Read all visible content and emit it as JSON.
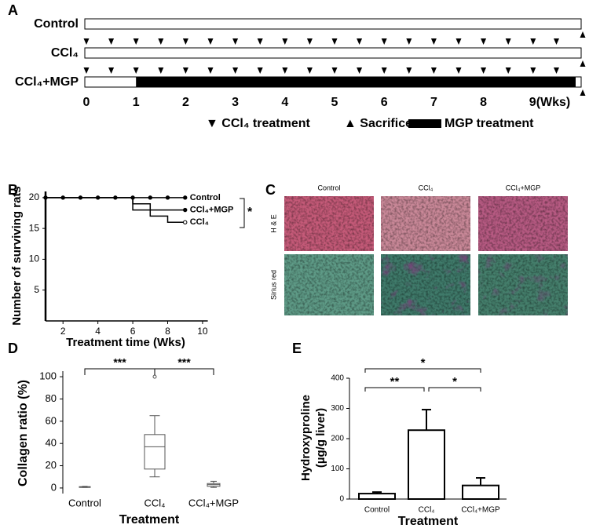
{
  "panel_labels": [
    "A",
    "B",
    "C",
    "D",
    "E"
  ],
  "timeline": {
    "rows": [
      "Control",
      "CCl₄",
      "CCl₄+MGP"
    ],
    "week_labels": [
      "0",
      "1",
      "2",
      "3",
      "4",
      "5",
      "6",
      "7",
      "8",
      "9(Wks)"
    ],
    "legend": [
      "▼ CCl₄ treatment",
      "▲ Sacrifice",
      "MGP treatment"
    ]
  },
  "histology": {
    "columns": [
      "Control",
      "CCl₄",
      "CCl₄+MGP"
    ],
    "rows": [
      "H & E",
      "Sirius red"
    ]
  },
  "chart_data": [
    {
      "type": "line",
      "ylabel": "Number of surviving rats",
      "xlabel": "Treatment time (Wks)",
      "xlim": [
        1,
        10.3
      ],
      "ylim": [
        0,
        21
      ],
      "xticks": [
        2,
        4,
        6,
        8,
        10
      ],
      "yticks": [
        5,
        10,
        15,
        20
      ],
      "series": [
        {
          "name": "Control",
          "color": "#000000",
          "x": [
            1,
            2,
            3,
            4,
            5,
            6,
            7,
            8,
            9
          ],
          "values": [
            20,
            20,
            20,
            20,
            20,
            20,
            20,
            20,
            20
          ]
        },
        {
          "name": "CCl₄+MGP",
          "color": "#000000",
          "x": [
            1,
            6,
            6,
            7,
            7,
            9
          ],
          "values": [
            20,
            20,
            19,
            19,
            18,
            18
          ]
        },
        {
          "name": "CCl₄",
          "color": "#000000",
          "x": [
            1,
            6,
            6,
            7,
            7,
            8,
            8,
            9
          ],
          "values": [
            20,
            20,
            18,
            18,
            17,
            17,
            16,
            16
          ]
        }
      ],
      "annotation": "*"
    },
    {
      "type": "box",
      "ylabel": "Collagen ratio (%)",
      "xlabel": "Treatment",
      "categories": [
        "Control",
        "CCl₄",
        "CCl₄+MGP"
      ],
      "ylim": [
        -5,
        105
      ],
      "yticks": [
        0,
        20,
        40,
        60,
        80,
        100
      ],
      "boxes": [
        {
          "min": 0.5,
          "q1": 0.8,
          "median": 1,
          "q3": 1.2,
          "max": 1.5
        },
        {
          "min": 10,
          "q1": 17,
          "median": 37,
          "q3": 48,
          "max": 65,
          "outliers": [
            100
          ]
        },
        {
          "min": 0.5,
          "q1": 1.5,
          "median": 3,
          "q3": 4,
          "max": 6
        }
      ],
      "significance": [
        "***",
        "***"
      ]
    },
    {
      "type": "bar",
      "ylabel": [
        "Hydroxyproline",
        "(µg/g liver)"
      ],
      "xlabel": "Treatment",
      "categories": [
        "Control",
        "CCl₄",
        "CCl₄+MGP"
      ],
      "values": [
        18,
        228,
        45
      ],
      "errors": [
        5,
        68,
        25
      ],
      "color": "#ffffff",
      "ylim": [
        0,
        400
      ],
      "yticks": [
        0,
        100,
        200,
        300,
        400
      ],
      "significance": [
        "*",
        "**",
        "*"
      ]
    }
  ]
}
